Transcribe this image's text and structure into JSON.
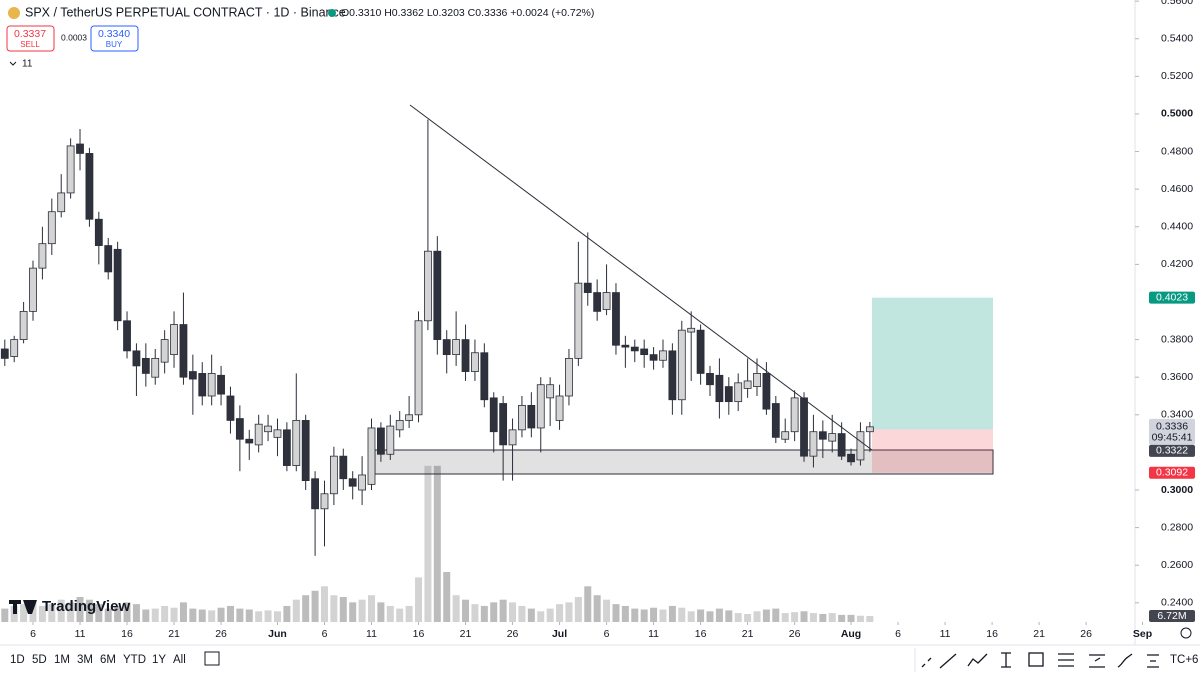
{
  "chart_data": {
    "type": "candlestick",
    "title": "SPX / TetherUS PERPETUAL CONTRACT · 1D · Binance",
    "ohlc_text": "O0.3310 H0.3362 L0.3203 C0.3336 +0.0024 (+0.72%)",
    "sell": {
      "price": "0.3337",
      "label": "SELL"
    },
    "spread": "0.0003",
    "buy": {
      "price": "0.3340",
      "label": "BUY"
    },
    "indicators": "11",
    "watermark": "TradingView",
    "x": [
      2,
      3,
      4,
      5,
      6,
      7,
      8,
      9,
      10,
      11,
      12,
      13,
      14,
      15,
      16,
      17,
      18,
      19,
      20,
      21,
      22,
      23,
      24,
      25,
      26,
      27,
      28,
      29,
      30,
      31,
      32,
      33,
      34,
      35,
      36,
      37,
      38,
      39,
      40,
      41,
      42,
      43,
      44,
      45,
      46,
      47,
      48,
      49,
      50,
      51,
      52,
      53,
      54,
      55,
      56,
      57,
      58,
      59,
      60,
      61,
      62,
      63,
      64,
      65,
      66,
      67,
      68,
      69,
      70,
      71,
      72,
      73,
      74,
      75,
      76,
      77,
      78,
      79,
      80,
      81,
      82,
      83,
      84,
      85,
      86,
      87,
      88,
      89,
      90,
      91,
      92,
      93,
      94
    ],
    "open": [
      0.375,
      0.371,
      0.38,
      0.395,
      0.418,
      0.431,
      0.448,
      0.458,
      0.484,
      0.479,
      0.444,
      0.43,
      0.428,
      0.39,
      0.374,
      0.37,
      0.36,
      0.368,
      0.372,
      0.388,
      0.363,
      0.362,
      0.35,
      0.361,
      0.35,
      0.338,
      0.327,
      0.324,
      0.331,
      0.328,
      0.332,
      0.313,
      0.337,
      0.306,
      0.29,
      0.298,
      0.318,
      0.306,
      0.3,
      0.303,
      0.333,
      0.319,
      0.332,
      0.337,
      0.34,
      0.39,
      0.427,
      0.38,
      0.372,
      0.38,
      0.363,
      0.373,
      0.349,
      0.346,
      0.324,
      0.332,
      0.345,
      0.333,
      0.349,
      0.337,
      0.35,
      0.37,
      0.41,
      0.405,
      0.396,
      0.405,
      0.377,
      0.376,
      0.375,
      0.372,
      0.369,
      0.374,
      0.348,
      0.384,
      0.385,
      0.362,
      0.361,
      0.355,
      0.347,
      0.354,
      0.355,
      0.362,
      0.346,
      0.327,
      0.331,
      0.349,
      0.318,
      0.331,
      0.326,
      0.33,
      0.319,
      0.316,
      0.331
    ],
    "high": [
      0.38,
      0.382,
      0.4,
      0.422,
      0.44,
      0.455,
      0.468,
      0.487,
      0.492,
      0.482,
      0.448,
      0.434,
      0.432,
      0.395,
      0.378,
      0.378,
      0.375,
      0.385,
      0.395,
      0.405,
      0.372,
      0.368,
      0.372,
      0.366,
      0.355,
      0.345,
      0.332,
      0.34,
      0.34,
      0.338,
      0.336,
      0.362,
      0.34,
      0.31,
      0.305,
      0.323,
      0.322,
      0.31,
      0.318,
      0.338,
      0.336,
      0.34,
      0.342,
      0.35,
      0.395,
      0.497,
      0.435,
      0.385,
      0.395,
      0.388,
      0.38,
      0.378,
      0.352,
      0.35,
      0.338,
      0.35,
      0.352,
      0.36,
      0.36,
      0.356,
      0.375,
      0.432,
      0.437,
      0.412,
      0.42,
      0.41,
      0.382,
      0.38,
      0.38,
      0.376,
      0.38,
      0.378,
      0.39,
      0.395,
      0.388,
      0.366,
      0.37,
      0.36,
      0.362,
      0.37,
      0.37,
      0.368,
      0.35,
      0.338,
      0.353,
      0.352,
      0.34,
      0.337,
      0.34,
      0.336,
      0.322,
      0.336,
      0.3362
    ],
    "low": [
      0.366,
      0.368,
      0.378,
      0.39,
      0.412,
      0.425,
      0.445,
      0.455,
      0.47,
      0.44,
      0.42,
      0.412,
      0.385,
      0.37,
      0.35,
      0.355,
      0.356,
      0.362,
      0.365,
      0.356,
      0.34,
      0.345,
      0.345,
      0.345,
      0.33,
      0.31,
      0.316,
      0.32,
      0.326,
      0.318,
      0.31,
      0.31,
      0.3,
      0.265,
      0.27,
      0.292,
      0.3,
      0.295,
      0.292,
      0.3,
      0.315,
      0.316,
      0.328,
      0.333,
      0.336,
      0.385,
      0.372,
      0.362,
      0.366,
      0.358,
      0.358,
      0.344,
      0.32,
      0.305,
      0.305,
      0.328,
      0.328,
      0.32,
      0.334,
      0.332,
      0.345,
      0.366,
      0.398,
      0.39,
      0.393,
      0.372,
      0.365,
      0.368,
      0.365,
      0.364,
      0.365,
      0.34,
      0.34,
      0.358,
      0.356,
      0.35,
      0.338,
      0.34,
      0.342,
      0.349,
      0.35,
      0.34,
      0.325,
      0.325,
      0.326,
      0.315,
      0.312,
      0.317,
      0.32,
      0.316,
      0.313,
      0.313,
      0.3203
    ],
    "close": [
      0.37,
      0.38,
      0.395,
      0.418,
      0.431,
      0.448,
      0.458,
      0.483,
      0.479,
      0.444,
      0.43,
      0.416,
      0.39,
      0.374,
      0.366,
      0.362,
      0.37,
      0.38,
      0.388,
      0.36,
      0.359,
      0.35,
      0.362,
      0.351,
      0.337,
      0.327,
      0.325,
      0.335,
      0.334,
      0.332,
      0.313,
      0.337,
      0.305,
      0.29,
      0.298,
      0.318,
      0.306,
      0.302,
      0.308,
      0.333,
      0.319,
      0.334,
      0.337,
      0.34,
      0.39,
      0.427,
      0.38,
      0.372,
      0.38,
      0.363,
      0.373,
      0.348,
      0.331,
      0.324,
      0.332,
      0.345,
      0.333,
      0.356,
      0.356,
      0.35,
      0.37,
      0.41,
      0.405,
      0.395,
      0.405,
      0.377,
      0.376,
      0.374,
      0.372,
      0.369,
      0.374,
      0.348,
      0.385,
      0.386,
      0.362,
      0.356,
      0.347,
      0.347,
      0.357,
      0.358,
      0.362,
      0.343,
      0.328,
      0.331,
      0.349,
      0.318,
      0.331,
      0.327,
      0.33,
      0.318,
      0.315,
      0.331,
      0.3336
    ],
    "volume": [
      15,
      18,
      20,
      22,
      18,
      20,
      25,
      22,
      28,
      25,
      20,
      15,
      18,
      22,
      20,
      14,
      15,
      18,
      16,
      22,
      15,
      14,
      13,
      16,
      18,
      15,
      14,
      12,
      13,
      12,
      18,
      25,
      30,
      35,
      40,
      30,
      28,
      22,
      25,
      30,
      22,
      18,
      15,
      18,
      50,
      175,
      175,
      56,
      30,
      25,
      20,
      18,
      22,
      25,
      22,
      18,
      15,
      12,
      15,
      20,
      22,
      28,
      40,
      30,
      25,
      20,
      18,
      15,
      14,
      16,
      14,
      18,
      16,
      12,
      14,
      12,
      15,
      13,
      10,
      9,
      12,
      14,
      15,
      10,
      11,
      12,
      10,
      9,
      10,
      8,
      8,
      7,
      6.72
    ],
    "volume_label": {
      "value": 6.72,
      "label": "6.72M"
    },
    "xlim": [
      1.49,
      122.2
    ],
    "xticks": [
      {
        "value": 5,
        "label": "6"
      },
      {
        "value": 10,
        "label": "11"
      },
      {
        "value": 15,
        "label": "16"
      },
      {
        "value": 20,
        "label": "21"
      },
      {
        "value": 25,
        "label": "26"
      },
      {
        "value": 31,
        "label": "Jun"
      },
      {
        "value": 36,
        "label": "6"
      },
      {
        "value": 41,
        "label": "11"
      },
      {
        "value": 46,
        "label": "16"
      },
      {
        "value": 51,
        "label": "21"
      },
      {
        "value": 56,
        "label": "26"
      },
      {
        "value": 61,
        "label": "Jul"
      },
      {
        "value": 66,
        "label": "6"
      },
      {
        "value": 71,
        "label": "11"
      },
      {
        "value": 76,
        "label": "16"
      },
      {
        "value": 81,
        "label": "21"
      },
      {
        "value": 86,
        "label": "26"
      },
      {
        "value": 92,
        "label": "Aug"
      },
      {
        "value": 97,
        "label": "6"
      },
      {
        "value": 102,
        "label": "11"
      },
      {
        "value": 107,
        "label": "16"
      },
      {
        "value": 112,
        "label": "21"
      },
      {
        "value": 117,
        "label": "26"
      },
      {
        "value": 123,
        "label": "Sep"
      }
    ],
    "ylim": [
      0.2298,
      0.5606
    ],
    "yticks": [
      {
        "value": 0.24,
        "label": "0.2400"
      },
      {
        "value": 0.26,
        "label": "0.2600"
      },
      {
        "value": 0.28,
        "label": "0.2800"
      },
      {
        "value": 0.3,
        "label": "0.3000"
      },
      {
        "value": 0.34,
        "label": "0.3400"
      },
      {
        "value": 0.36,
        "label": "0.3600"
      },
      {
        "value": 0.38,
        "label": "0.3800"
      },
      {
        "value": 0.42,
        "label": "0.4200"
      },
      {
        "value": 0.44,
        "label": "0.4400"
      },
      {
        "value": 0.46,
        "label": "0.4600"
      },
      {
        "value": 0.48,
        "label": "0.4800"
      },
      {
        "value": 0.5,
        "label": "0.5000"
      },
      {
        "value": 0.52,
        "label": "0.5200"
      },
      {
        "value": 0.54,
        "label": "0.5400"
      },
      {
        "value": 0.56,
        "label": "0.5600"
      }
    ],
    "y2lim": [
      0,
      697
    ],
    "position": {
      "target": {
        "value": 0.4023,
        "label": "0.4023"
      },
      "entry": {
        "value": 0.3322,
        "label": "0.3322"
      },
      "stop": {
        "value": 0.3092,
        "label": "0.3092"
      }
    },
    "last_price": {
      "value": 0.3336,
      "label": "0.3336",
      "countdown": "09:45:41"
    },
    "up_color": "#d4d4d4",
    "down_color": "#2f323c",
    "timeframes": [
      "1D",
      "5D",
      "1M",
      "3M",
      "6M",
      "YTD",
      "1Y",
      "All"
    ],
    "timezone": "TC+6"
  }
}
